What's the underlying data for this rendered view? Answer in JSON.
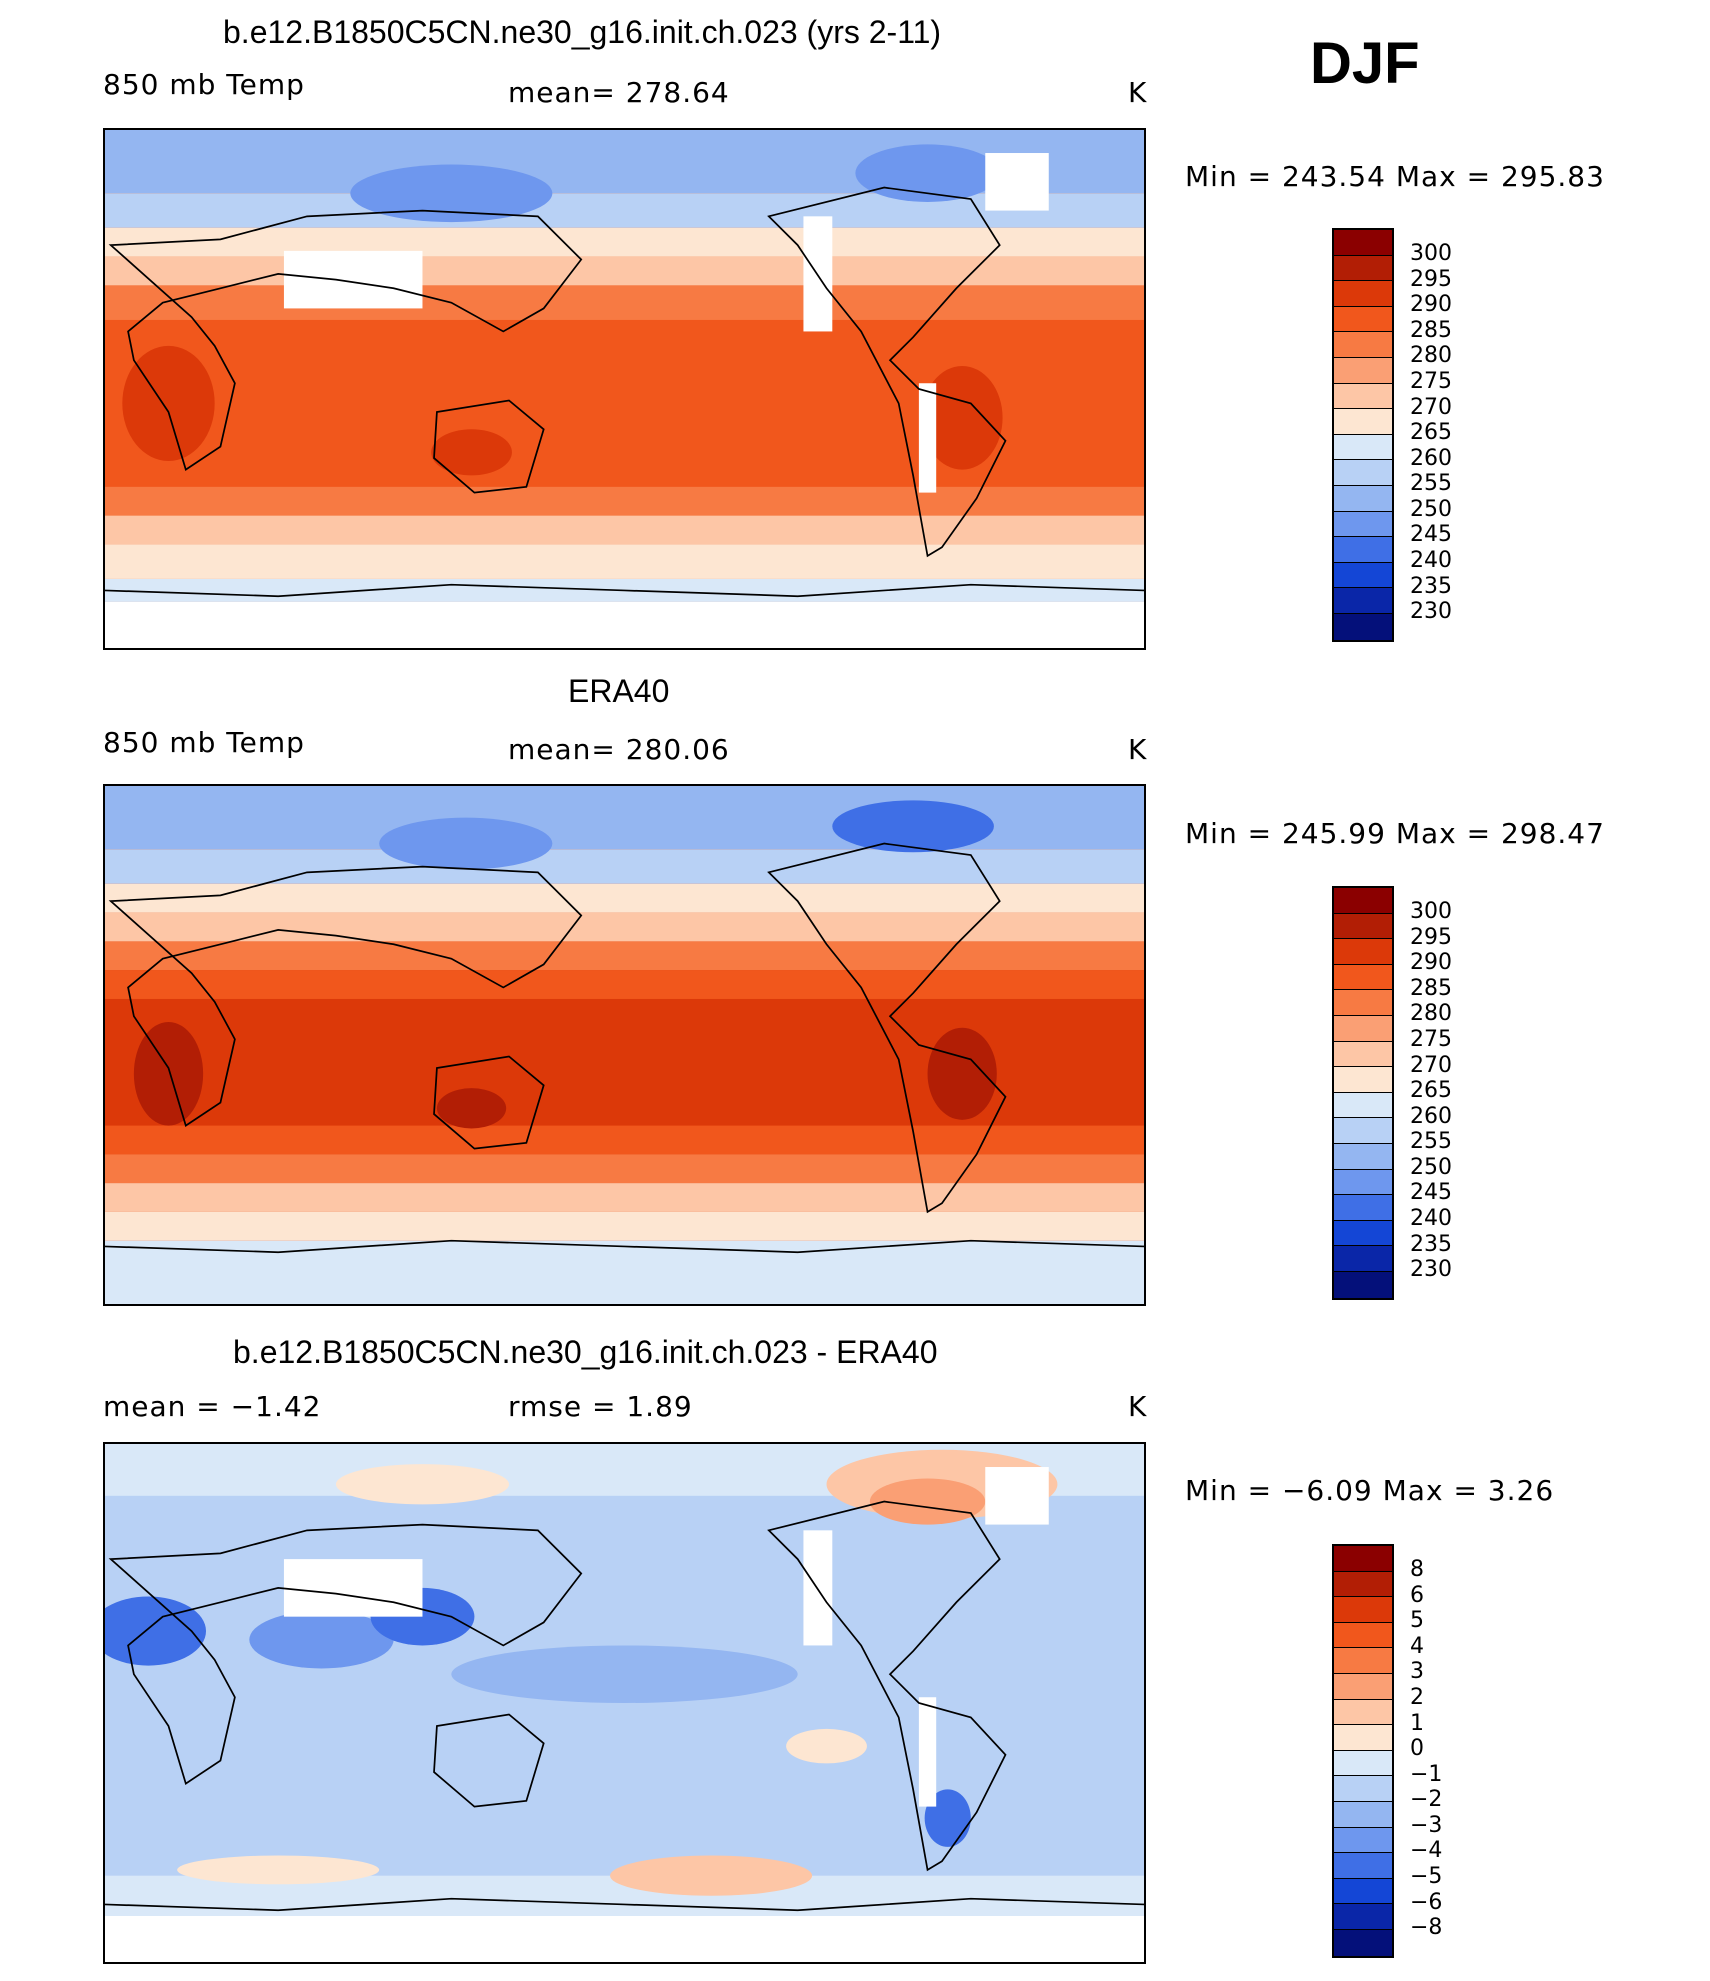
{
  "season_label": "DJF",
  "panels": [
    {
      "id": "model",
      "title": "b.e12.B1850C5CN.ne30_g16.init.ch.023 (yrs 2-11)",
      "left_label": "850 mb Temp",
      "center_label": "mean=  278.64",
      "units": "K",
      "minmax": "Min  =  243.54  Max  =  295.83"
    },
    {
      "id": "obs",
      "title": "ERA40",
      "left_label": "850 mb Temp",
      "center_label": "mean=  280.06",
      "units": "K",
      "minmax": "Min  =  245.99  Max  =  298.47"
    },
    {
      "id": "diff",
      "title": "b.e12.B1850C5CN.ne30_g16.init.ch.023 - ERA40",
      "left_label": "mean  =    −1.42",
      "center_label": "rmse  =     1.89",
      "units": "K",
      "minmax": "Min  =    −6.09  Max  =     3.26"
    }
  ],
  "chart_data": [
    {
      "type": "heatmap",
      "title": "b.e12.B1850C5CN.ne30_g16.init.ch.023 (yrs 2-11)",
      "variable": "850 mb Temp",
      "units": "K",
      "mean": 278.64,
      "min": 243.54,
      "max": 295.83,
      "colorbar_levels": [
        "300",
        "295",
        "290",
        "285",
        "280",
        "275",
        "270",
        "265",
        "260",
        "255",
        "250",
        "245",
        "240",
        "235",
        "230"
      ],
      "colorbar_colors": [
        "#8b0000",
        "#b21e05",
        "#dc3909",
        "#f1571c",
        "#f77a43",
        "#fa9f74",
        "#fdc6a6",
        "#fde6d2",
        "#d9e8f8",
        "#b8d1f5",
        "#94b6f1",
        "#6e97ee",
        "#3f6fe6",
        "#1446d6",
        "#0a26a8",
        "#04107a"
      ]
    },
    {
      "type": "heatmap",
      "title": "ERA40",
      "variable": "850 mb Temp",
      "units": "K",
      "mean": 280.06,
      "min": 245.99,
      "max": 298.47,
      "colorbar_levels": [
        "300",
        "295",
        "290",
        "285",
        "280",
        "275",
        "270",
        "265",
        "260",
        "255",
        "250",
        "245",
        "240",
        "235",
        "230"
      ],
      "colorbar_colors": [
        "#8b0000",
        "#b21e05",
        "#dc3909",
        "#f1571c",
        "#f77a43",
        "#fa9f74",
        "#fdc6a6",
        "#fde6d2",
        "#d9e8f8",
        "#b8d1f5",
        "#94b6f1",
        "#6e97ee",
        "#3f6fe6",
        "#1446d6",
        "#0a26a8",
        "#04107a"
      ]
    },
    {
      "type": "heatmap",
      "title": "b.e12.B1850C5CN.ne30_g16.init.ch.023 - ERA40",
      "units": "K",
      "mean": -1.42,
      "rmse": 1.89,
      "min": -6.09,
      "max": 3.26,
      "colorbar_levels": [
        "8",
        "6",
        "5",
        "4",
        "3",
        "2",
        "1",
        "0",
        "−1",
        "−2",
        "−3",
        "−4",
        "−5",
        "−6",
        "−8"
      ],
      "colorbar_colors": [
        "#8b0000",
        "#b21e05",
        "#dc3909",
        "#f1571c",
        "#f77a43",
        "#fa9f74",
        "#fdc6a6",
        "#fde6d2",
        "#d9e8f8",
        "#b8d1f5",
        "#94b6f1",
        "#6e97ee",
        "#3f6fe6",
        "#1446d6",
        "#0a26a8",
        "#04107a"
      ]
    }
  ]
}
